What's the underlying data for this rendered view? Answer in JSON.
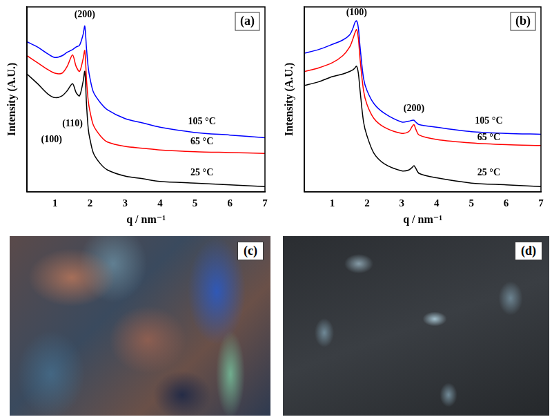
{
  "chart_data": [
    {
      "type": "line",
      "title": "(a)",
      "x_label": "q / nm⁻¹",
      "y_label": "Intensity (A.U.)",
      "xlim": [
        0.2,
        7
      ],
      "xticks": [
        1,
        2,
        3,
        4,
        5,
        6,
        7
      ],
      "ylim": [
        0,
        10.6
      ],
      "yticks": [],
      "tick_labels": "x",
      "grid": false,
      "x": [
        0.2,
        0.5,
        0.8,
        1.0,
        1.2,
        1.35,
        1.5,
        1.6,
        1.7,
        1.8,
        1.85,
        1.9,
        1.95,
        2.0,
        2.1,
        2.3,
        2.5,
        3,
        3.5,
        4,
        5,
        6,
        7
      ],
      "series": [
        {
          "name": "25 °C",
          "color": "#000000",
          "values": [
            6.75,
            6.2,
            5.6,
            5.4,
            5.5,
            5.8,
            6.2,
            5.7,
            5.5,
            6.3,
            6.9,
            5.0,
            3.6,
            3.0,
            2.2,
            1.6,
            1.25,
            0.9,
            0.75,
            0.6,
            0.5,
            0.4,
            0.3
          ]
        },
        {
          "name": "65 °C",
          "color": "#ff0000",
          "values": [
            7.8,
            7.4,
            7.0,
            6.8,
            6.8,
            7.2,
            7.85,
            7.2,
            6.9,
            7.6,
            8.1,
            6.4,
            5.2,
            4.6,
            3.8,
            3.2,
            2.85,
            2.6,
            2.5,
            2.4,
            2.3,
            2.25,
            2.2
          ]
        },
        {
          "name": "105 °C",
          "color": "#0000ff",
          "values": [
            8.6,
            8.3,
            7.9,
            7.7,
            7.8,
            8.0,
            8.15,
            8.3,
            8.4,
            9.0,
            9.5,
            8.2,
            7.1,
            6.5,
            5.7,
            5.1,
            4.7,
            4.2,
            3.95,
            3.7,
            3.4,
            3.25,
            3.1
          ]
        }
      ],
      "annotations": [
        {
          "text": "(200)",
          "x": 1.85,
          "y": 10.15
        },
        {
          "text": "(110)",
          "x": 1.5,
          "y": 3.9
        },
        {
          "text": "(100)",
          "x": 0.9,
          "y": 3.0
        },
        {
          "text": "105 °C",
          "x": 5.2,
          "y": 4.0
        },
        {
          "text": "65 °C",
          "x": 5.2,
          "y": 2.85
        },
        {
          "text": "25 °C",
          "x": 5.2,
          "y": 1.1
        }
      ]
    },
    {
      "type": "line",
      "title": "(b)",
      "x_label": "q / nm⁻¹",
      "y_label": "Intensity (A.U.)",
      "xlim": [
        0.2,
        7
      ],
      "xticks": [
        1,
        2,
        3,
        4,
        5,
        6,
        7
      ],
      "ylim": [
        0,
        10.6
      ],
      "yticks": [],
      "tick_labels": "x",
      "grid": false,
      "x": [
        0.2,
        0.6,
        1.0,
        1.3,
        1.5,
        1.6,
        1.65,
        1.7,
        1.75,
        1.8,
        1.9,
        2.0,
        2.2,
        2.5,
        3.0,
        3.2,
        3.3,
        3.35,
        3.4,
        3.5,
        4,
        5,
        6,
        7
      ],
      "series": [
        {
          "name": "25 °C",
          "color": "#000000",
          "values": [
            6.1,
            6.3,
            6.6,
            6.75,
            6.9,
            7.0,
            7.1,
            7.2,
            6.8,
            5.8,
            4.0,
            3.2,
            2.2,
            1.6,
            1.2,
            1.25,
            1.4,
            1.5,
            1.35,
            1.05,
            0.8,
            0.5,
            0.4,
            0.3
          ]
        },
        {
          "name": "65 °C",
          "color": "#ff0000",
          "values": [
            6.9,
            7.1,
            7.4,
            7.8,
            8.3,
            8.8,
            9.1,
            9.3,
            8.8,
            7.6,
            5.8,
            5.0,
            4.2,
            3.7,
            3.35,
            3.45,
            3.75,
            3.85,
            3.6,
            3.25,
            3.0,
            2.8,
            2.7,
            2.65
          ]
        },
        {
          "name": "105 °C",
          "color": "#0000ff",
          "values": [
            7.95,
            8.15,
            8.45,
            8.7,
            9.0,
            9.4,
            9.7,
            9.8,
            9.4,
            8.3,
            6.5,
            5.8,
            5.05,
            4.5,
            4.0,
            4.05,
            4.1,
            4.1,
            4.0,
            3.85,
            3.7,
            3.45,
            3.35,
            3.3
          ]
        }
      ],
      "annotations": [
        {
          "text": "(100)",
          "x": 1.7,
          "y": 10.25
        },
        {
          "text": "(200)",
          "x": 3.35,
          "y": 4.75
        },
        {
          "text": "105 °C",
          "x": 5.5,
          "y": 4.05
        },
        {
          "text": "65 °C",
          "x": 5.5,
          "y": 3.1
        },
        {
          "text": "25 °C",
          "x": 5.5,
          "y": 1.1
        }
      ]
    }
  ],
  "images": [
    {
      "label": "(c)"
    },
    {
      "label": "(d)"
    }
  ]
}
